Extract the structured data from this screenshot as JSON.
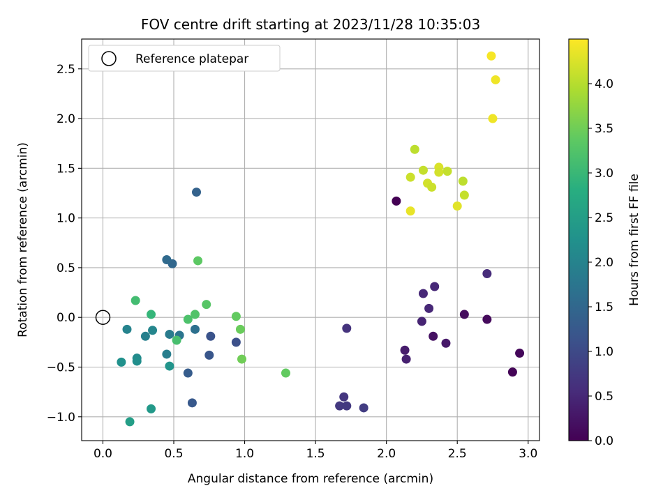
{
  "chart_data": {
    "type": "scatter",
    "title": "FOV centre drift starting at 2023/11/28 10:35:03",
    "xlabel": "Angular distance from reference (arcmin)",
    "ylabel": "Rotation from reference (arcmin)",
    "xlim": [
      -0.15,
      3.08
    ],
    "ylim": [
      -1.24,
      2.8
    ],
    "xticks": [
      0.0,
      0.5,
      1.0,
      1.5,
      2.0,
      2.5,
      3.0
    ],
    "xtick_labels": [
      "0.0",
      "0.5",
      "1.0",
      "1.5",
      "2.0",
      "2.5",
      "3.0"
    ],
    "yticks": [
      -1.0,
      -0.5,
      0.0,
      0.5,
      1.0,
      1.5,
      2.0,
      2.5
    ],
    "ytick_labels": [
      "−1.0",
      "−0.5",
      "0.0",
      "0.5",
      "1.0",
      "1.5",
      "2.0",
      "2.5"
    ],
    "grid": true,
    "legend": {
      "position": "top-left",
      "entries": [
        "Reference platepar"
      ]
    },
    "reference_point": {
      "x": 0.0,
      "y": 0.0,
      "marker": "open-circle",
      "name": "Reference platepar"
    },
    "colorbar": {
      "label": "Hours from first FF file",
      "colormap": "viridis",
      "range": [
        0.0,
        4.5
      ],
      "ticks": [
        0.0,
        0.5,
        1.0,
        1.5,
        2.0,
        2.5,
        3.0,
        3.5,
        4.0
      ],
      "tick_labels": [
        "0.0",
        "0.5",
        "1.0",
        "1.5",
        "2.0",
        "2.5",
        "3.0",
        "3.5",
        "4.0"
      ]
    },
    "points": [
      {
        "x": 2.07,
        "y": 1.17,
        "t": 0.0
      },
      {
        "x": 2.89,
        "y": -0.55,
        "t": 0.05
      },
      {
        "x": 2.94,
        "y": -0.36,
        "t": 0.08
      },
      {
        "x": 2.71,
        "y": -0.02,
        "t": 0.12
      },
      {
        "x": 2.55,
        "y": 0.03,
        "t": 0.15
      },
      {
        "x": 2.33,
        "y": -0.19,
        "t": 0.2
      },
      {
        "x": 2.42,
        "y": -0.26,
        "t": 0.3
      },
      {
        "x": 2.13,
        "y": -0.33,
        "t": 0.35
      },
      {
        "x": 2.14,
        "y": -0.42,
        "t": 0.4
      },
      {
        "x": 2.25,
        "y": -0.04,
        "t": 0.45
      },
      {
        "x": 2.3,
        "y": 0.09,
        "t": 0.5
      },
      {
        "x": 2.26,
        "y": 0.24,
        "t": 0.5
      },
      {
        "x": 2.34,
        "y": 0.31,
        "t": 0.5
      },
      {
        "x": 2.71,
        "y": 0.44,
        "t": 0.55
      },
      {
        "x": 1.72,
        "y": -0.11,
        "t": 0.65
      },
      {
        "x": 1.7,
        "y": -0.8,
        "t": 0.7
      },
      {
        "x": 1.67,
        "y": -0.89,
        "t": 0.75
      },
      {
        "x": 1.72,
        "y": -0.89,
        "t": 0.75
      },
      {
        "x": 1.84,
        "y": -0.91,
        "t": 0.8
      },
      {
        "x": 0.94,
        "y": -0.25,
        "t": 1.1
      },
      {
        "x": 0.76,
        "y": -0.19,
        "t": 1.15
      },
      {
        "x": 0.75,
        "y": -0.38,
        "t": 1.2
      },
      {
        "x": 0.63,
        "y": -0.86,
        "t": 1.25
      },
      {
        "x": 0.6,
        "y": -0.56,
        "t": 1.3
      },
      {
        "x": 0.66,
        "y": 1.26,
        "t": 1.4
      },
      {
        "x": 0.49,
        "y": 0.54,
        "t": 1.5
      },
      {
        "x": 0.45,
        "y": 0.58,
        "t": 1.55
      },
      {
        "x": 0.65,
        "y": -0.12,
        "t": 1.65
      },
      {
        "x": 0.54,
        "y": -0.18,
        "t": 1.75
      },
      {
        "x": 0.47,
        "y": -0.17,
        "t": 1.85
      },
      {
        "x": 0.45,
        "y": -0.37,
        "t": 1.9
      },
      {
        "x": 0.3,
        "y": -0.19,
        "t": 1.95
      },
      {
        "x": 0.17,
        "y": -0.12,
        "t": 2.0
      },
      {
        "x": 0.35,
        "y": -0.13,
        "t": 2.05
      },
      {
        "x": 0.24,
        "y": -0.41,
        "t": 2.15
      },
      {
        "x": 0.24,
        "y": -0.44,
        "t": 2.2
      },
      {
        "x": 0.13,
        "y": -0.45,
        "t": 2.25
      },
      {
        "x": 0.47,
        "y": -0.49,
        "t": 2.3
      },
      {
        "x": 0.34,
        "y": -0.92,
        "t": 2.4
      },
      {
        "x": 0.19,
        "y": -1.05,
        "t": 2.5
      },
      {
        "x": 0.34,
        "y": 0.03,
        "t": 2.95
      },
      {
        "x": 0.23,
        "y": 0.17,
        "t": 3.1
      },
      {
        "x": 0.52,
        "y": -0.23,
        "t": 3.15
      },
      {
        "x": 0.6,
        "y": -0.02,
        "t": 3.2
      },
      {
        "x": 0.65,
        "y": 0.03,
        "t": 3.25
      },
      {
        "x": 0.73,
        "y": 0.13,
        "t": 3.3
      },
      {
        "x": 0.67,
        "y": 0.57,
        "t": 3.35
      },
      {
        "x": 0.94,
        "y": 0.01,
        "t": 3.4
      },
      {
        "x": 0.97,
        "y": -0.12,
        "t": 3.45
      },
      {
        "x": 0.98,
        "y": -0.42,
        "t": 3.5
      },
      {
        "x": 1.29,
        "y": -0.56,
        "t": 3.4
      },
      {
        "x": 2.2,
        "y": 1.69,
        "t": 4.05
      },
      {
        "x": 2.26,
        "y": 1.48,
        "t": 4.1
      },
      {
        "x": 2.17,
        "y": 1.41,
        "t": 4.15
      },
      {
        "x": 2.29,
        "y": 1.35,
        "t": 4.2
      },
      {
        "x": 2.32,
        "y": 1.31,
        "t": 4.15
      },
      {
        "x": 2.37,
        "y": 1.51,
        "t": 4.25
      },
      {
        "x": 2.37,
        "y": 1.46,
        "t": 4.2
      },
      {
        "x": 2.43,
        "y": 1.47,
        "t": 4.1
      },
      {
        "x": 2.54,
        "y": 1.37,
        "t": 4.05
      },
      {
        "x": 2.55,
        "y": 1.23,
        "t": 4.1
      },
      {
        "x": 2.5,
        "y": 1.12,
        "t": 4.3
      },
      {
        "x": 2.17,
        "y": 1.07,
        "t": 4.35
      },
      {
        "x": 2.75,
        "y": 2.0,
        "t": 4.4
      },
      {
        "x": 2.74,
        "y": 2.63,
        "t": 4.45
      },
      {
        "x": 2.77,
        "y": 2.39,
        "t": 4.4
      }
    ]
  }
}
